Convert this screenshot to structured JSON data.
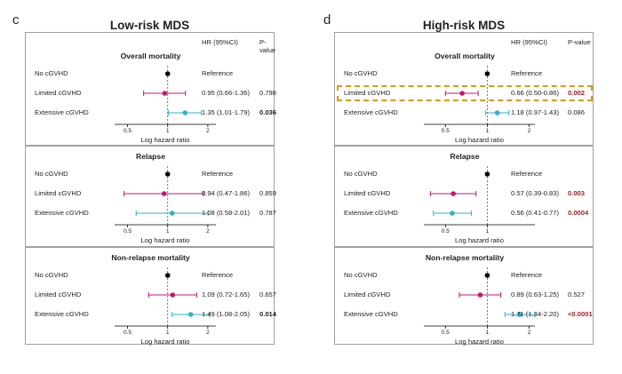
{
  "colors": {
    "reference": "#000000",
    "limited": "#c2186d",
    "extensive": "#2fb1c8",
    "significant_red": "#a1202a",
    "highlight": "#d99a1a"
  },
  "header": {
    "hr_label": "HR (95%CI)",
    "p_label": "P-value"
  },
  "chart_data": [
    {
      "type": "forest",
      "panel": "c",
      "title": "Low-risk MDS",
      "xscale": "log",
      "xlabel": "Log hazard ratio",
      "xlim": [
        0.4,
        2.3
      ],
      "sections": [
        {
          "title": "Overall mortality",
          "ticks": [
            "0.5",
            "1",
            "2"
          ],
          "rows": [
            {
              "group": "No cGVHD",
              "hr": 1,
              "lo": null,
              "hi": null,
              "text": "Reference",
              "p": "",
              "series": "reference",
              "p_style": ""
            },
            {
              "group": "Limited cGVHD",
              "hr": 0.95,
              "lo": 0.66,
              "hi": 1.36,
              "text": "0.95 (0.66-1.36)",
              "p": "0.798",
              "series": "limited",
              "p_style": ""
            },
            {
              "group": "Extensive cGVHD",
              "hr": 1.35,
              "lo": 1.01,
              "hi": 1.79,
              "text": "1.35 (1.01-1.79)",
              "p": "0.036",
              "series": "extensive",
              "p_style": "bold"
            }
          ]
        },
        {
          "title": "Relapse",
          "ticks": [
            "0.5",
            "1",
            "2"
          ],
          "rows": [
            {
              "group": "No cGVHD",
              "hr": 1,
              "lo": null,
              "hi": null,
              "text": "Reference",
              "p": "",
              "series": "reference",
              "p_style": ""
            },
            {
              "group": "Limited cGVHD",
              "hr": 0.94,
              "lo": 0.47,
              "hi": 1.86,
              "text": "0.94 (0.47-1.86)",
              "p": "0.859",
              "series": "limited",
              "p_style": ""
            },
            {
              "group": "Extensive cGVHD",
              "hr": 1.08,
              "lo": 0.58,
              "hi": 2.01,
              "text": "1.08 (0.58-2.01)",
              "p": "0.787",
              "series": "extensive",
              "p_style": ""
            }
          ]
        },
        {
          "title": "Non-relapse mortality",
          "ticks": [
            "0.5",
            "1",
            "2"
          ],
          "rows": [
            {
              "group": "No cGVHD",
              "hr": 1,
              "lo": null,
              "hi": null,
              "text": "Reference",
              "p": "",
              "series": "reference",
              "p_style": ""
            },
            {
              "group": "Limited cGVHD",
              "hr": 1.09,
              "lo": 0.72,
              "hi": 1.65,
              "text": "1.09 (0.72-1.65)",
              "p": "0.657",
              "series": "limited",
              "p_style": ""
            },
            {
              "group": "Extensive cGVHD",
              "hr": 1.49,
              "lo": 1.08,
              "hi": 2.05,
              "text": "1.49 (1.08-2.05)",
              "p": "0.014",
              "series": "extensive",
              "p_style": "bold"
            }
          ]
        }
      ]
    },
    {
      "type": "forest",
      "panel": "d",
      "title": "High-risk MDS",
      "xscale": "log",
      "xlabel": "Log hazard ratio",
      "xlim": [
        0.35,
        2.2
      ],
      "sections": [
        {
          "title": "Overall mortality",
          "ticks": [
            "0.5",
            "1",
            "2"
          ],
          "highlight_row": 1,
          "rows": [
            {
              "group": "No cGVHD",
              "hr": 1,
              "lo": null,
              "hi": null,
              "text": "Reference",
              "p": "",
              "series": "reference",
              "p_style": ""
            },
            {
              "group": "Limited cGVHD",
              "hr": 0.66,
              "lo": 0.5,
              "hi": 0.86,
              "text": "0.66 (0.50-0.86)",
              "p": "0.002",
              "series": "limited",
              "p_style": "red"
            },
            {
              "group": "Extensive cGVHD",
              "hr": 1.18,
              "lo": 0.97,
              "hi": 1.43,
              "text": "1.18 (0.97-1.43)",
              "p": "0.086",
              "series": "extensive",
              "p_style": ""
            }
          ]
        },
        {
          "title": "Relapse",
          "ticks": [
            "0.5",
            "1"
          ],
          "rows": [
            {
              "group": "No cGVHD",
              "hr": 1,
              "lo": null,
              "hi": null,
              "text": "Reference",
              "p": "",
              "series": "reference",
              "p_style": ""
            },
            {
              "group": "Limited cGVHD",
              "hr": 0.57,
              "lo": 0.39,
              "hi": 0.83,
              "text": "0.57 (0.39-0.83)",
              "p": "0.003",
              "series": "limited",
              "p_style": "red"
            },
            {
              "group": "Extensive cGVHD",
              "hr": 0.56,
              "lo": 0.41,
              "hi": 0.77,
              "text": "0.56 (0.41-0.77)",
              "p": "0.0004",
              "series": "extensive",
              "p_style": "red"
            }
          ]
        },
        {
          "title": "Non-relapse mortality",
          "ticks": [
            "0.5",
            "1",
            "2"
          ],
          "rows": [
            {
              "group": "No cGVHD",
              "hr": 1,
              "lo": null,
              "hi": null,
              "text": "Reference",
              "p": "",
              "series": "reference",
              "p_style": ""
            },
            {
              "group": "Limited cGVHD",
              "hr": 0.89,
              "lo": 0.63,
              "hi": 1.25,
              "text": "0.89 (0.63-1.25)",
              "p": "0.527",
              "series": "limited",
              "p_style": ""
            },
            {
              "group": "Extensive cGVHD",
              "hr": 1.71,
              "lo": 1.34,
              "hi": 2.2,
              "text": "1.71 (1.34-2.20)",
              "p": "<0.0001",
              "series": "extensive",
              "p_style": "red"
            }
          ]
        }
      ]
    }
  ]
}
